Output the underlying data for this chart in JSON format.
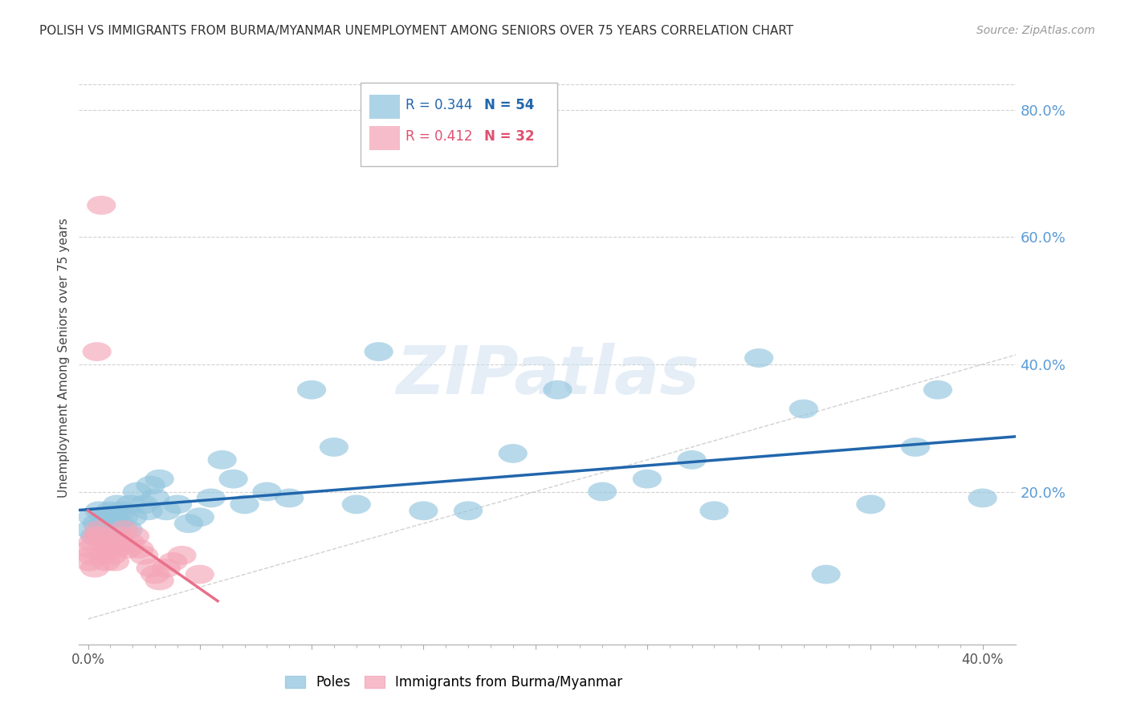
{
  "title": "POLISH VS IMMIGRANTS FROM BURMA/MYANMAR UNEMPLOYMENT AMONG SENIORS OVER 75 YEARS CORRELATION CHART",
  "source": "Source: ZipAtlas.com",
  "ylabel": "Unemployment Among Seniors over 75 years",
  "watermark": "ZIPatlas",
  "legend_blue_r": "R = 0.344",
  "legend_blue_n": "N = 54",
  "legend_pink_r": "R = 0.412",
  "legend_pink_n": "N = 32",
  "poles_color": "#92c5de",
  "burma_color": "#f4a6b8",
  "poles_line_color": "#2166ac",
  "burma_line_color": "#e8708a",
  "diagonal_color": "#cccccc",
  "background_color": "#ffffff",
  "grid_color": "#cccccc",
  "right_axis_color": "#5b9bd5",
  "title_color": "#333333",
  "source_color": "#999999",
  "xmin": -0.004,
  "xmax": 0.415,
  "ymin": -0.04,
  "ymax": 0.86,
  "x_ticks": [
    0.0,
    0.05,
    0.1,
    0.15,
    0.2,
    0.25,
    0.3,
    0.35,
    0.4
  ],
  "x_tick_labels": [
    "0.0%",
    "",
    "",
    "",
    "",
    "",
    "",
    "",
    "40.0%"
  ],
  "y_ticks_right": [
    0.2,
    0.4,
    0.6,
    0.8
  ],
  "y_tick_labels_right": [
    "20.0%",
    "40.0%",
    "60.0%",
    "80.0%"
  ],
  "poles_x": [
    0.001,
    0.002,
    0.003,
    0.004,
    0.005,
    0.006,
    0.007,
    0.008,
    0.009,
    0.01,
    0.011,
    0.012,
    0.013,
    0.014,
    0.015,
    0.016,
    0.018,
    0.019,
    0.02,
    0.022,
    0.025,
    0.027,
    0.028,
    0.03,
    0.032,
    0.035,
    0.04,
    0.045,
    0.05,
    0.055,
    0.06,
    0.065,
    0.07,
    0.08,
    0.09,
    0.1,
    0.11,
    0.12,
    0.13,
    0.15,
    0.17,
    0.19,
    0.21,
    0.23,
    0.25,
    0.27,
    0.28,
    0.3,
    0.32,
    0.33,
    0.35,
    0.37,
    0.38,
    0.4
  ],
  "poles_y": [
    0.14,
    0.16,
    0.13,
    0.15,
    0.17,
    0.14,
    0.16,
    0.15,
    0.13,
    0.17,
    0.16,
    0.14,
    0.18,
    0.15,
    0.17,
    0.16,
    0.14,
    0.18,
    0.16,
    0.2,
    0.18,
    0.17,
    0.21,
    0.19,
    0.22,
    0.17,
    0.18,
    0.15,
    0.16,
    0.19,
    0.25,
    0.22,
    0.18,
    0.2,
    0.19,
    0.36,
    0.27,
    0.18,
    0.42,
    0.17,
    0.17,
    0.26,
    0.36,
    0.2,
    0.22,
    0.25,
    0.17,
    0.41,
    0.33,
    0.07,
    0.18,
    0.27,
    0.36,
    0.19
  ],
  "burma_x": [
    0.0005,
    0.001,
    0.0015,
    0.002,
    0.003,
    0.004,
    0.005,
    0.006,
    0.007,
    0.008,
    0.009,
    0.01,
    0.011,
    0.012,
    0.013,
    0.014,
    0.015,
    0.016,
    0.018,
    0.019,
    0.021,
    0.023,
    0.025,
    0.028,
    0.03,
    0.032,
    0.035,
    0.038,
    0.042,
    0.05,
    0.004,
    0.006
  ],
  "burma_y": [
    0.09,
    0.11,
    0.1,
    0.12,
    0.08,
    0.13,
    0.14,
    0.13,
    0.1,
    0.09,
    0.11,
    0.12,
    0.1,
    0.09,
    0.11,
    0.13,
    0.12,
    0.14,
    0.11,
    0.12,
    0.13,
    0.11,
    0.1,
    0.08,
    0.07,
    0.06,
    0.08,
    0.09,
    0.1,
    0.07,
    0.42,
    0.65
  ]
}
